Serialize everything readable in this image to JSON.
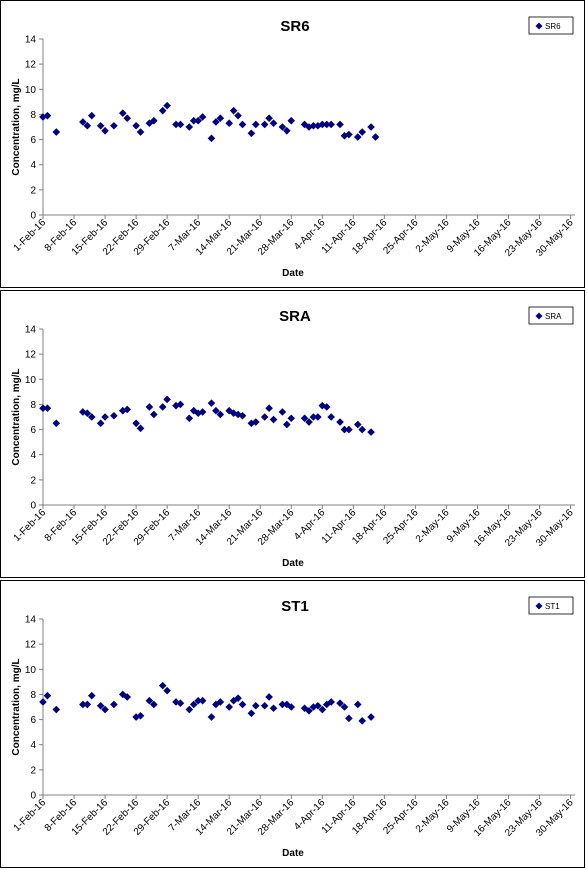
{
  "chart_data": [
    {
      "type": "scatter",
      "title": "SR6",
      "xlabel": "Date",
      "ylabel": "Concentration, mg/L",
      "ylim": [
        0,
        14
      ],
      "yticks": [
        "0",
        "2",
        "4",
        "6",
        "8",
        "10",
        "12",
        "14"
      ],
      "xlim": [
        "2016-02-01",
        "2016-05-31"
      ],
      "xticks": [
        {
          "date": "2016-02-01",
          "label": "1-Feb-16"
        },
        {
          "date": "2016-02-08",
          "label": "8-Feb-16"
        },
        {
          "date": "2016-02-15",
          "label": "15-Feb-16"
        },
        {
          "date": "2016-02-22",
          "label": "22-Feb-16"
        },
        {
          "date": "2016-02-29",
          "label": "29-Feb-16"
        },
        {
          "date": "2016-03-07",
          "label": "7-Mar-16"
        },
        {
          "date": "2016-03-14",
          "label": "14-Mar-16"
        },
        {
          "date": "2016-03-21",
          "label": "21-Mar-16"
        },
        {
          "date": "2016-03-28",
          "label": "28-Mar-16"
        },
        {
          "date": "2016-04-04",
          "label": "4-Apr-16"
        },
        {
          "date": "2016-04-11",
          "label": "11-Apr-16"
        },
        {
          "date": "2016-04-18",
          "label": "18-Apr-16"
        },
        {
          "date": "2016-04-25",
          "label": "25-Apr-16"
        },
        {
          "date": "2016-05-02",
          "label": "2-May-16"
        },
        {
          "date": "2016-05-09",
          "label": "9-May-16"
        },
        {
          "date": "2016-05-16",
          "label": "16-May-16"
        },
        {
          "date": "2016-05-23",
          "label": "23-May-16"
        },
        {
          "date": "2016-05-30",
          "label": "30-May-16"
        }
      ],
      "grid": false,
      "legend_placement": "top-right",
      "series": [
        {
          "name": "SR6",
          "color": "#000080",
          "marker": "diamond",
          "points": [
            [
              "2016-02-01",
              7.8
            ],
            [
              "2016-02-02",
              7.9
            ],
            [
              "2016-02-04",
              6.6
            ],
            [
              "2016-02-10",
              7.4
            ],
            [
              "2016-02-11",
              7.1
            ],
            [
              "2016-02-12",
              7.9
            ],
            [
              "2016-02-14",
              7.1
            ],
            [
              "2016-02-15",
              6.7
            ],
            [
              "2016-02-17",
              7.1
            ],
            [
              "2016-02-19",
              8.1
            ],
            [
              "2016-02-20",
              7.7
            ],
            [
              "2016-02-22",
              7.1
            ],
            [
              "2016-02-23",
              6.6
            ],
            [
              "2016-02-25",
              7.3
            ],
            [
              "2016-02-26",
              7.5
            ],
            [
              "2016-02-28",
              8.3
            ],
            [
              "2016-02-29",
              8.7
            ],
            [
              "2016-03-02",
              7.2
            ],
            [
              "2016-03-03",
              7.2
            ],
            [
              "2016-03-05",
              7.0
            ],
            [
              "2016-03-06",
              7.5
            ],
            [
              "2016-03-07",
              7.5
            ],
            [
              "2016-03-08",
              7.8
            ],
            [
              "2016-03-10",
              6.1
            ],
            [
              "2016-03-11",
              7.4
            ],
            [
              "2016-03-12",
              7.7
            ],
            [
              "2016-03-14",
              7.3
            ],
            [
              "2016-03-15",
              8.3
            ],
            [
              "2016-03-16",
              7.9
            ],
            [
              "2016-03-17",
              7.2
            ],
            [
              "2016-03-19",
              6.5
            ],
            [
              "2016-03-20",
              7.2
            ],
            [
              "2016-03-22",
              7.2
            ],
            [
              "2016-03-23",
              7.7
            ],
            [
              "2016-03-24",
              7.3
            ],
            [
              "2016-03-26",
              7.0
            ],
            [
              "2016-03-27",
              6.7
            ],
            [
              "2016-03-28",
              7.5
            ],
            [
              "2016-03-31",
              7.2
            ],
            [
              "2016-04-01",
              7.0
            ],
            [
              "2016-04-02",
              7.1
            ],
            [
              "2016-04-03",
              7.1
            ],
            [
              "2016-04-04",
              7.2
            ],
            [
              "2016-04-05",
              7.2
            ],
            [
              "2016-04-06",
              7.2
            ],
            [
              "2016-04-08",
              7.2
            ],
            [
              "2016-04-09",
              6.3
            ],
            [
              "2016-04-10",
              6.4
            ],
            [
              "2016-04-12",
              6.2
            ],
            [
              "2016-04-13",
              6.6
            ],
            [
              "2016-04-15",
              7.0
            ],
            [
              "2016-04-16",
              6.2
            ]
          ]
        }
      ]
    },
    {
      "type": "scatter",
      "title": "SRA",
      "xlabel": "Date",
      "ylabel": "Concentration, mg/L",
      "ylim": [
        0,
        14
      ],
      "yticks": [
        "0",
        "2",
        "4",
        "6",
        "8",
        "10",
        "12",
        "14"
      ],
      "xlim": [
        "2016-02-01",
        "2016-05-31"
      ],
      "xticks": [
        {
          "date": "2016-02-01",
          "label": "1-Feb-16"
        },
        {
          "date": "2016-02-08",
          "label": "8-Feb-16"
        },
        {
          "date": "2016-02-15",
          "label": "15-Feb-16"
        },
        {
          "date": "2016-02-22",
          "label": "22-Feb-16"
        },
        {
          "date": "2016-02-29",
          "label": "29-Feb-16"
        },
        {
          "date": "2016-03-07",
          "label": "7-Mar-16"
        },
        {
          "date": "2016-03-14",
          "label": "14-Mar-16"
        },
        {
          "date": "2016-03-21",
          "label": "21-Mar-16"
        },
        {
          "date": "2016-03-28",
          "label": "28-Mar-16"
        },
        {
          "date": "2016-04-04",
          "label": "4-Apr-16"
        },
        {
          "date": "2016-04-11",
          "label": "11-Apr-16"
        },
        {
          "date": "2016-04-18",
          "label": "18-Apr-16"
        },
        {
          "date": "2016-04-25",
          "label": "25-Apr-16"
        },
        {
          "date": "2016-05-02",
          "label": "2-May-16"
        },
        {
          "date": "2016-05-09",
          "label": "9-May-16"
        },
        {
          "date": "2016-05-16",
          "label": "16-May-16"
        },
        {
          "date": "2016-05-23",
          "label": "23-May-16"
        },
        {
          "date": "2016-05-30",
          "label": "30-May-16"
        }
      ],
      "grid": false,
      "legend_placement": "top-right",
      "series": [
        {
          "name": "SRA",
          "color": "#000080",
          "marker": "diamond",
          "points": [
            [
              "2016-02-01",
              7.7
            ],
            [
              "2016-02-02",
              7.7
            ],
            [
              "2016-02-04",
              6.5
            ],
            [
              "2016-02-10",
              7.4
            ],
            [
              "2016-02-11",
              7.3
            ],
            [
              "2016-02-12",
              7.0
            ],
            [
              "2016-02-14",
              6.5
            ],
            [
              "2016-02-15",
              7.0
            ],
            [
              "2016-02-17",
              7.1
            ],
            [
              "2016-02-19",
              7.5
            ],
            [
              "2016-02-20",
              7.6
            ],
            [
              "2016-02-22",
              6.5
            ],
            [
              "2016-02-23",
              6.1
            ],
            [
              "2016-02-25",
              7.8
            ],
            [
              "2016-02-26",
              7.2
            ],
            [
              "2016-02-28",
              7.8
            ],
            [
              "2016-02-29",
              8.4
            ],
            [
              "2016-03-02",
              7.9
            ],
            [
              "2016-03-03",
              8.0
            ],
            [
              "2016-03-05",
              6.9
            ],
            [
              "2016-03-06",
              7.5
            ],
            [
              "2016-03-07",
              7.3
            ],
            [
              "2016-03-08",
              7.4
            ],
            [
              "2016-03-10",
              8.1
            ],
            [
              "2016-03-11",
              7.5
            ],
            [
              "2016-03-12",
              7.2
            ],
            [
              "2016-03-14",
              7.5
            ],
            [
              "2016-03-15",
              7.3
            ],
            [
              "2016-03-16",
              7.2
            ],
            [
              "2016-03-17",
              7.1
            ],
            [
              "2016-03-19",
              6.5
            ],
            [
              "2016-03-20",
              6.6
            ],
            [
              "2016-03-22",
              7.0
            ],
            [
              "2016-03-23",
              7.7
            ],
            [
              "2016-03-24",
              6.8
            ],
            [
              "2016-03-26",
              7.4
            ],
            [
              "2016-03-27",
              6.4
            ],
            [
              "2016-03-28",
              6.9
            ],
            [
              "2016-03-31",
              6.9
            ],
            [
              "2016-04-01",
              6.6
            ],
            [
              "2016-04-02",
              7.0
            ],
            [
              "2016-04-03",
              7.0
            ],
            [
              "2016-04-04",
              7.9
            ],
            [
              "2016-04-05",
              7.8
            ],
            [
              "2016-04-06",
              7.0
            ],
            [
              "2016-04-08",
              6.6
            ],
            [
              "2016-04-09",
              6.0
            ],
            [
              "2016-04-10",
              6.0
            ],
            [
              "2016-04-12",
              6.4
            ],
            [
              "2016-04-13",
              6.0
            ],
            [
              "2016-04-15",
              5.8
            ]
          ]
        }
      ]
    },
    {
      "type": "scatter",
      "title": "ST1",
      "xlabel": "Date",
      "ylabel": "Concentration, mg/L",
      "ylim": [
        0,
        14
      ],
      "yticks": [
        "0",
        "2",
        "4",
        "6",
        "8",
        "10",
        "12",
        "14"
      ],
      "xlim": [
        "2016-02-01",
        "2016-05-31"
      ],
      "xticks": [
        {
          "date": "2016-02-01",
          "label": "1-Feb-16"
        },
        {
          "date": "2016-02-08",
          "label": "8-Feb-16"
        },
        {
          "date": "2016-02-15",
          "label": "15-Feb-16"
        },
        {
          "date": "2016-02-22",
          "label": "22-Feb-16"
        },
        {
          "date": "2016-02-29",
          "label": "29-Feb-16"
        },
        {
          "date": "2016-03-07",
          "label": "7-Mar-16"
        },
        {
          "date": "2016-03-14",
          "label": "14-Mar-16"
        },
        {
          "date": "2016-03-21",
          "label": "21-Mar-16"
        },
        {
          "date": "2016-03-28",
          "label": "28-Mar-16"
        },
        {
          "date": "2016-04-04",
          "label": "4-Apr-16"
        },
        {
          "date": "2016-04-11",
          "label": "11-Apr-16"
        },
        {
          "date": "2016-04-18",
          "label": "18-Apr-16"
        },
        {
          "date": "2016-04-25",
          "label": "25-Apr-16"
        },
        {
          "date": "2016-05-02",
          "label": "2-May-16"
        },
        {
          "date": "2016-05-09",
          "label": "9-May-16"
        },
        {
          "date": "2016-05-16",
          "label": "16-May-16"
        },
        {
          "date": "2016-05-23",
          "label": "23-May-16"
        },
        {
          "date": "2016-05-30",
          "label": "30-May-16"
        }
      ],
      "grid": false,
      "legend_placement": "top-right",
      "series": [
        {
          "name": "ST1",
          "color": "#000080",
          "marker": "diamond",
          "points": [
            [
              "2016-02-01",
              7.4
            ],
            [
              "2016-02-02",
              7.9
            ],
            [
              "2016-02-04",
              6.8
            ],
            [
              "2016-02-10",
              7.2
            ],
            [
              "2016-02-11",
              7.2
            ],
            [
              "2016-02-12",
              7.9
            ],
            [
              "2016-02-14",
              7.1
            ],
            [
              "2016-02-15",
              6.8
            ],
            [
              "2016-02-17",
              7.2
            ],
            [
              "2016-02-19",
              8.0
            ],
            [
              "2016-02-20",
              7.8
            ],
            [
              "2016-02-22",
              6.2
            ],
            [
              "2016-02-23",
              6.3
            ],
            [
              "2016-02-25",
              7.5
            ],
            [
              "2016-02-26",
              7.2
            ],
            [
              "2016-02-28",
              8.7
            ],
            [
              "2016-02-29",
              8.3
            ],
            [
              "2016-03-02",
              7.4
            ],
            [
              "2016-03-03",
              7.3
            ],
            [
              "2016-03-05",
              6.8
            ],
            [
              "2016-03-06",
              7.2
            ],
            [
              "2016-03-07",
              7.5
            ],
            [
              "2016-03-08",
              7.5
            ],
            [
              "2016-03-10",
              6.2
            ],
            [
              "2016-03-11",
              7.2
            ],
            [
              "2016-03-12",
              7.4
            ],
            [
              "2016-03-14",
              7.0
            ],
            [
              "2016-03-15",
              7.5
            ],
            [
              "2016-03-16",
              7.7
            ],
            [
              "2016-03-17",
              7.2
            ],
            [
              "2016-03-19",
              6.5
            ],
            [
              "2016-03-20",
              7.1
            ],
            [
              "2016-03-22",
              7.1
            ],
            [
              "2016-03-23",
              7.8
            ],
            [
              "2016-03-24",
              6.9
            ],
            [
              "2016-03-26",
              7.2
            ],
            [
              "2016-03-27",
              7.2
            ],
            [
              "2016-03-28",
              7.0
            ],
            [
              "2016-03-31",
              6.9
            ],
            [
              "2016-04-01",
              6.7
            ],
            [
              "2016-04-02",
              7.0
            ],
            [
              "2016-04-03",
              7.1
            ],
            [
              "2016-04-04",
              6.8
            ],
            [
              "2016-04-05",
              7.2
            ],
            [
              "2016-04-06",
              7.4
            ],
            [
              "2016-04-08",
              7.3
            ],
            [
              "2016-04-09",
              7.0
            ],
            [
              "2016-04-10",
              6.1
            ],
            [
              "2016-04-12",
              7.2
            ],
            [
              "2016-04-13",
              5.9
            ],
            [
              "2016-04-15",
              6.2
            ]
          ]
        }
      ]
    }
  ]
}
